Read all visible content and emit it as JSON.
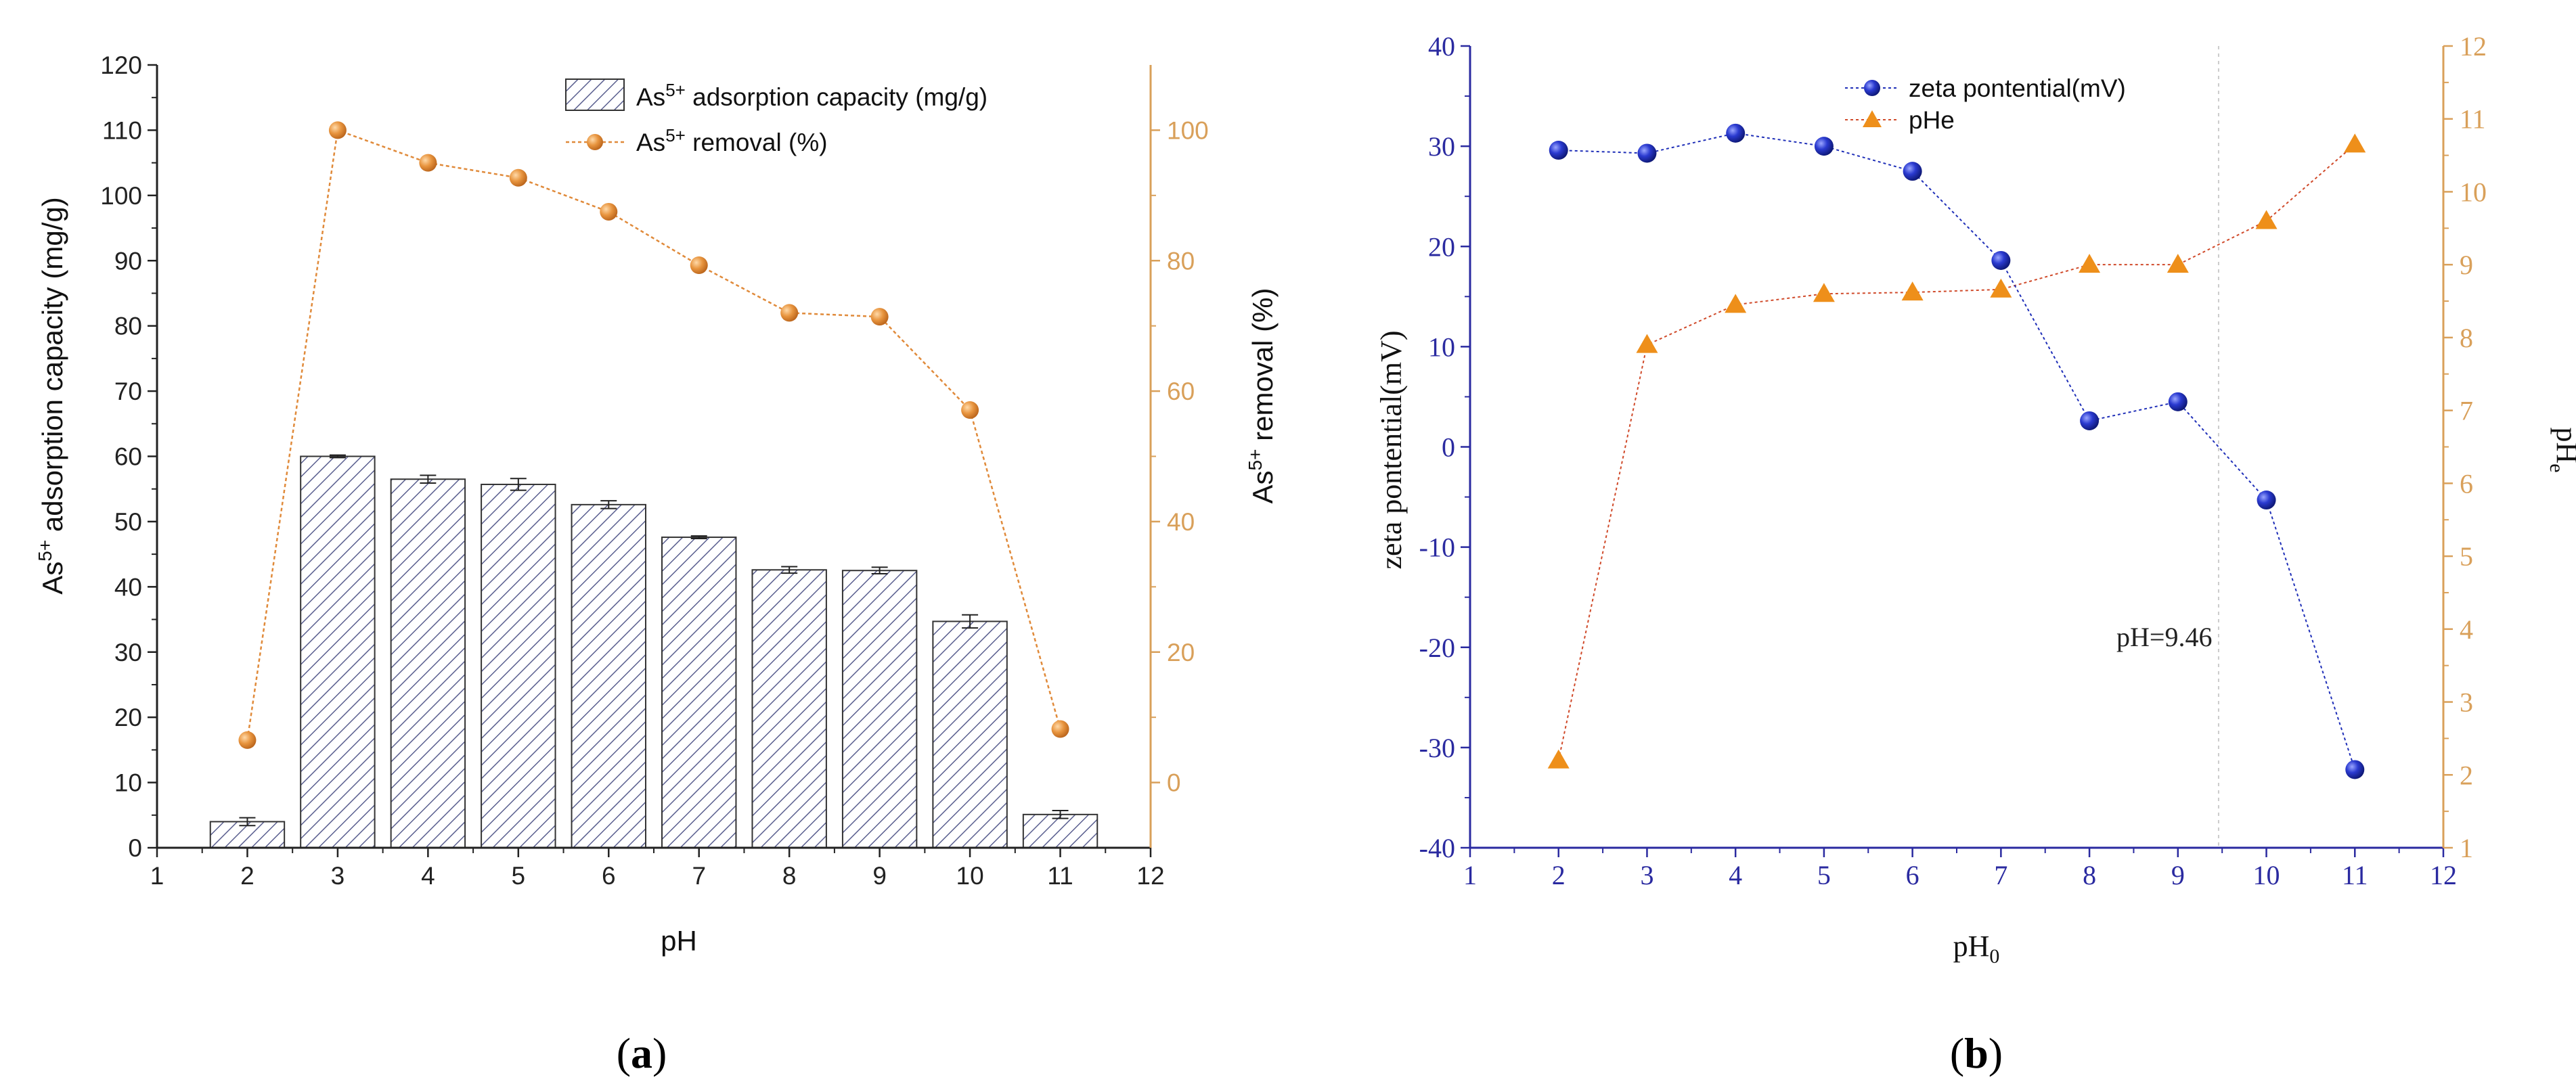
{
  "chart_data": [
    {
      "panel": "a",
      "panel_label_open": "(",
      "panel_label_letter": "a",
      "panel_label_close": ")",
      "type": "bar",
      "x": [
        2,
        3,
        4,
        5,
        6,
        7,
        8,
        9,
        10,
        11
      ],
      "xlabel": "pH",
      "xlim": [
        1,
        12
      ],
      "xticks": [
        "1",
        "2",
        "3",
        "4",
        "5",
        "6",
        "7",
        "8",
        "9",
        "10",
        "11",
        "12"
      ],
      "ylabel_left": {
        "pre": "As",
        "sup": "5+",
        "post": " adsorption capacity (mg/g)"
      },
      "ylim_left": [
        0,
        120
      ],
      "yticks_left": [
        "0",
        "10",
        "20",
        "30",
        "40",
        "50",
        "60",
        "70",
        "80",
        "90",
        "100",
        "110",
        "120"
      ],
      "ylabel_right": {
        "pre": "As",
        "sup": "5+",
        "post": " removal (%)"
      },
      "ylim_right": [
        -10,
        110
      ],
      "yticks_right": [
        "0",
        "20",
        "40",
        "60",
        "80",
        "100"
      ],
      "series": [
        {
          "name": "As5+ adsorption capacity (mg/g)",
          "legend": {
            "pre": "As",
            "sup": "5+",
            "post": " adsorption capacity (mg/g)"
          },
          "type": "bar",
          "axis": "left",
          "values": [
            4.0,
            60.0,
            56.5,
            55.7,
            52.6,
            47.6,
            42.6,
            42.5,
            34.7,
            5.1
          ],
          "errors": [
            0.6,
            0.2,
            0.6,
            0.9,
            0.6,
            0.2,
            0.5,
            0.5,
            1.0,
            0.6
          ],
          "color": "#4a5078"
        },
        {
          "name": "As5+ removal (%)",
          "legend": {
            "pre": "As",
            "sup": "5+",
            "post": " removal (%)"
          },
          "type": "line",
          "axis": "right",
          "values": [
            6.5,
            100.0,
            95.0,
            92.7,
            87.5,
            79.3,
            72.0,
            71.4,
            57.1,
            8.2
          ],
          "color": "#e08a3a"
        }
      ]
    },
    {
      "panel": "b",
      "panel_label_open": "(",
      "panel_label_letter": "b",
      "panel_label_close": ")",
      "type": "scatter",
      "x": [
        2,
        3,
        4,
        5,
        6,
        7,
        8,
        9,
        10,
        11
      ],
      "xlabel": {
        "pre": "pH",
        "sub": "0"
      },
      "xlim": [
        1,
        12
      ],
      "xticks": [
        "1",
        "2",
        "3",
        "4",
        "5",
        "6",
        "7",
        "8",
        "9",
        "10",
        "11",
        "12"
      ],
      "ylabel_left": "zeta pontential(mV)",
      "ylim_left": [
        -40,
        40
      ],
      "yticks_left": [
        "-40",
        "-30",
        "-20",
        "-10",
        "0",
        "10",
        "20",
        "30",
        "40"
      ],
      "ylabel_right": {
        "pre": "pH",
        "sub": "e"
      },
      "ylim_right": [
        1,
        12
      ],
      "yticks_right": [
        "1",
        "2",
        "3",
        "4",
        "5",
        "6",
        "7",
        "8",
        "9",
        "10",
        "11",
        "12"
      ],
      "series": [
        {
          "name": "zeta pontential(mV)",
          "type": "line",
          "axis": "left",
          "marker": "circle",
          "values": [
            29.6,
            29.3,
            31.3,
            30.0,
            27.5,
            18.6,
            2.6,
            4.5,
            -5.3,
            -32.2
          ],
          "color": "#1f2fb8"
        },
        {
          "name": "pHe",
          "type": "line",
          "axis": "right",
          "marker": "triangle",
          "values": [
            2.2,
            7.9,
            8.45,
            8.6,
            8.62,
            8.66,
            9.0,
            9.0,
            9.6,
            10.65
          ],
          "color": "#ee8f1a"
        }
      ],
      "annotation": {
        "text": "pH=9.46",
        "x": 9.46
      }
    }
  ],
  "colors": {
    "left_axis_a": "#222222",
    "right_axis": "#d9a05a",
    "left_axis_b": "#2a2aa0",
    "bar_hatch": "#5a5f8f"
  }
}
